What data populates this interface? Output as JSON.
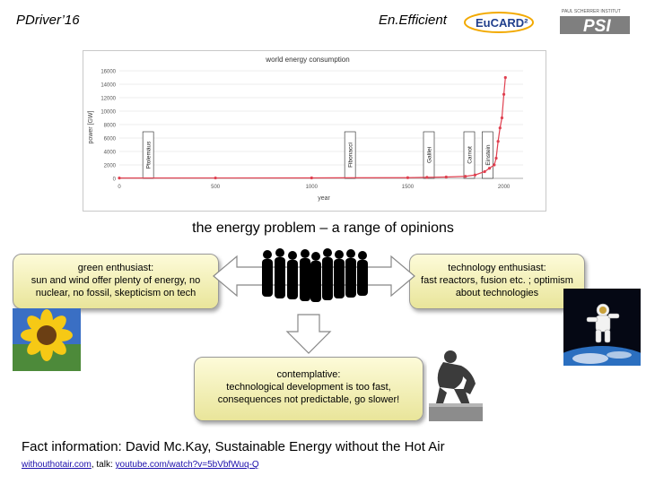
{
  "header": {
    "left_title": "PDriver’16",
    "center_title": "En.Efficient",
    "eucard_logo_text": "EuCARD²",
    "psi_logo_text": "PSI",
    "psi_institute_text": "PAUL SCHERRER INSTITUT"
  },
  "chart_data": {
    "type": "line",
    "title": "world energy consumption",
    "xlabel": "year",
    "ylabel": "power [GW]",
    "x_ticks": [
      "0",
      "500",
      "1000",
      "1500",
      "2000"
    ],
    "y_ticks": [
      "0",
      "2000",
      "4000",
      "6000",
      "8000",
      "10000",
      "12000",
      "14000",
      "16000"
    ],
    "xlim": [
      0,
      2100
    ],
    "ylim": [
      0,
      16000
    ],
    "series": [
      {
        "x": [
          0,
          500,
          1000,
          1500,
          1600,
          1700,
          1800,
          1850,
          1900,
          1925,
          1950,
          1960,
          1970,
          1980,
          1990,
          2000,
          2008
        ],
        "y": [
          50,
          60,
          70,
          100,
          150,
          200,
          300,
          500,
          1000,
          1500,
          2000,
          3000,
          5500,
          7500,
          9000,
          12500,
          15000
        ],
        "color": "#e04050"
      }
    ],
    "annotations": [
      {
        "label": "Ptolemäus",
        "x": 150
      },
      {
        "label": "Fibonacci",
        "x": 1200
      },
      {
        "label": "Galilei",
        "x": 1610
      },
      {
        "label": "Carnot",
        "x": 1820
      },
      {
        "label": "Einstein",
        "x": 1915
      }
    ]
  },
  "main_title": "the energy problem – a range of opinions",
  "green": {
    "heading": "green enthusiast:",
    "text": "sun and wind offer plenty of energy, no nuclear, no fossil, skepticism on tech"
  },
  "tech": {
    "heading": "technology enthusiast:",
    "text": "fast reactors, fusion etc. ; optimism about technologies"
  },
  "contemplative": {
    "heading": "contemplative:",
    "text": "technological development is too fast, consequences not predictable, go slower!"
  },
  "fact": "Fact information: David Mc.Kay, Sustainable Energy without the Hot Air",
  "links": {
    "link1": "withouthotair.com",
    "sep": ", talk: ",
    "link2": "youtube.com/watch?v=5bVbfWuq-Q"
  }
}
